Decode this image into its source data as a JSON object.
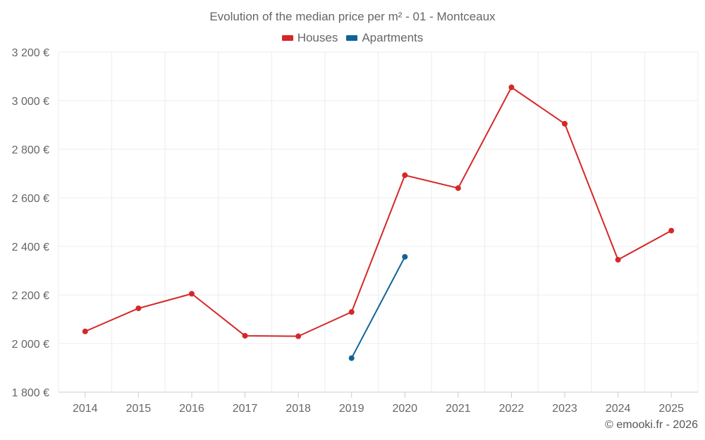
{
  "chart_data": {
    "type": "line",
    "title": "Evolution of the median price per m² - 01 - Montceaux",
    "xlabel": "",
    "ylabel": "",
    "categories": [
      "2014",
      "2015",
      "2016",
      "2017",
      "2018",
      "2019",
      "2020",
      "2021",
      "2022",
      "2023",
      "2024",
      "2025"
    ],
    "ylim": [
      1800,
      3200
    ],
    "yticks": [
      1800,
      2000,
      2200,
      2400,
      2600,
      2800,
      3000,
      3200
    ],
    "ytick_labels": [
      "1 800 €",
      "2 000 €",
      "2 200 €",
      "2 400 €",
      "2 600 €",
      "2 800 €",
      "3 000 €",
      "3 200 €"
    ],
    "grid": true,
    "legend_position": "top-center",
    "series": [
      {
        "name": "Houses",
        "color": "#d62728",
        "values": [
          2050,
          2145,
          2205,
          2032,
          2030,
          2130,
          2693,
          2640,
          3055,
          2905,
          2345,
          2465
        ]
      },
      {
        "name": "Apartments",
        "color": "#0f6496",
        "values": [
          null,
          null,
          null,
          null,
          null,
          1940,
          2357,
          null,
          null,
          null,
          null,
          null
        ]
      }
    ]
  },
  "credit": "© emooki.fr - 2026"
}
